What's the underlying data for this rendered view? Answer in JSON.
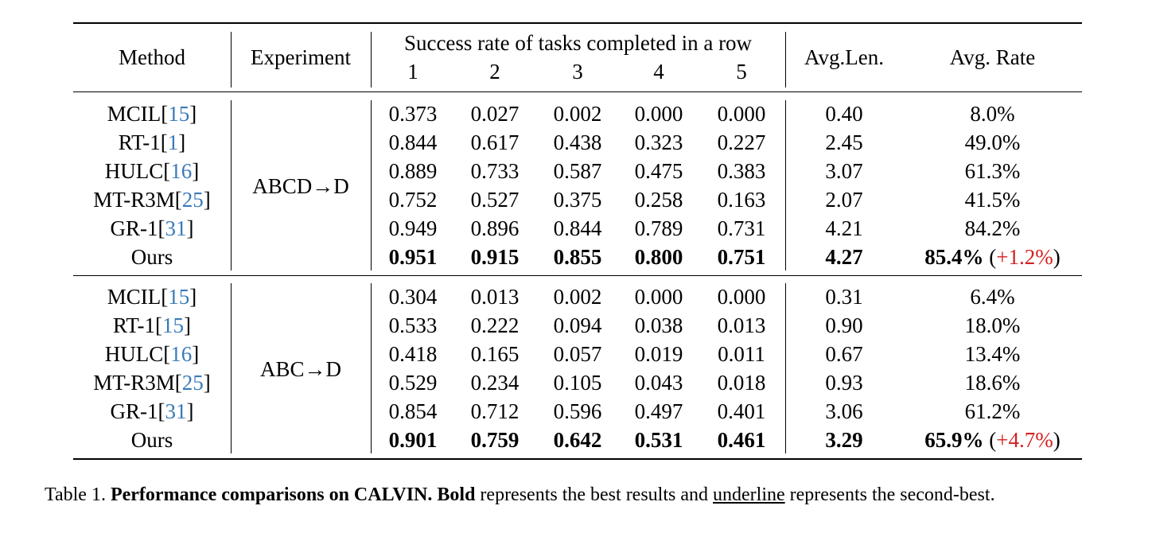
{
  "header": {
    "method": "Method",
    "experiment": "Experiment",
    "success_title": "Success rate of tasks completed in a row",
    "cols": [
      "1",
      "2",
      "3",
      "4",
      "5"
    ],
    "avg_len": "Avg.Len.",
    "avg_rate": "Avg. Rate"
  },
  "groups": [
    {
      "experiment": "ABCD→D",
      "rows": [
        {
          "name": "MCIL",
          "cite": "15",
          "vals": [
            "0.373",
            "0.027",
            "0.002",
            "0.000",
            "0.000"
          ],
          "len": "0.40",
          "rate": "8.0%",
          "gain": "",
          "best": false
        },
        {
          "name": "RT-1",
          "cite": "1",
          "vals": [
            "0.844",
            "0.617",
            "0.438",
            "0.323",
            "0.227"
          ],
          "len": "2.45",
          "rate": "49.0%",
          "gain": "",
          "best": false
        },
        {
          "name": "HULC",
          "cite": "16",
          "vals": [
            "0.889",
            "0.733",
            "0.587",
            "0.475",
            "0.383"
          ],
          "len": "3.07",
          "rate": "61.3%",
          "gain": "",
          "best": false
        },
        {
          "name": "MT-R3M",
          "cite": "25",
          "vals": [
            "0.752",
            "0.527",
            "0.375",
            "0.258",
            "0.163"
          ],
          "len": "2.07",
          "rate": "41.5%",
          "gain": "",
          "best": false
        },
        {
          "name": "GR-1",
          "cite": "31",
          "vals": [
            "0.949",
            "0.896",
            "0.844",
            "0.789",
            "0.731"
          ],
          "len": "4.21",
          "rate": "84.2%",
          "gain": "",
          "best": false
        },
        {
          "name": "Ours",
          "cite": "",
          "vals": [
            "0.951",
            "0.915",
            "0.855",
            "0.800",
            "0.751"
          ],
          "len": "4.27",
          "rate": "85.4%",
          "gain": "+1.2%",
          "best": true
        }
      ]
    },
    {
      "experiment": "ABC→D",
      "rows": [
        {
          "name": "MCIL",
          "cite": "15",
          "vals": [
            "0.304",
            "0.013",
            "0.002",
            "0.000",
            "0.000"
          ],
          "len": "0.31",
          "rate": "6.4%",
          "gain": "",
          "best": false
        },
        {
          "name": "RT-1",
          "cite": "15",
          "vals": [
            "0.533",
            "0.222",
            "0.094",
            "0.038",
            "0.013"
          ],
          "len": "0.90",
          "rate": "18.0%",
          "gain": "",
          "best": false
        },
        {
          "name": "HULC",
          "cite": "16",
          "vals": [
            "0.418",
            "0.165",
            "0.057",
            "0.019",
            "0.011"
          ],
          "len": "0.67",
          "rate": "13.4%",
          "gain": "",
          "best": false
        },
        {
          "name": "MT-R3M",
          "cite": "25",
          "vals": [
            "0.529",
            "0.234",
            "0.105",
            "0.043",
            "0.018"
          ],
          "len": "0.93",
          "rate": "18.6%",
          "gain": "",
          "best": false
        },
        {
          "name": "GR-1",
          "cite": "31",
          "vals": [
            "0.854",
            "0.712",
            "0.596",
            "0.497",
            "0.401"
          ],
          "len": "3.06",
          "rate": "61.2%",
          "gain": "",
          "best": false
        },
        {
          "name": "Ours",
          "cite": "",
          "vals": [
            "0.901",
            "0.759",
            "0.642",
            "0.531",
            "0.461"
          ],
          "len": "3.29",
          "rate": "65.9%",
          "gain": "+4.7%",
          "best": true
        }
      ]
    }
  ],
  "caption": {
    "label": "Table 1. ",
    "title": "Performance comparisons on CALVIN.",
    "bold_word": "Bold",
    "text1": " represents the best results and ",
    "underline_word": "underline",
    "text2": " represents the second-best."
  },
  "colors": {
    "cite": "#3a7ab8",
    "gain": "#d42020"
  }
}
